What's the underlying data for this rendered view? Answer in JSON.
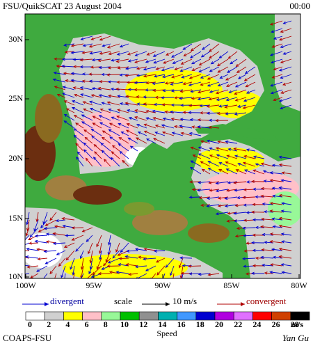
{
  "header": {
    "title": "FSU/QuikSCAT   23 August 2004",
    "time": "00:00"
  },
  "map": {
    "lat_labels": [
      "30N",
      "25N",
      "20N",
      "15N",
      "10N"
    ],
    "lon_labels": [
      "100W",
      "95W",
      "90W",
      "85W",
      "80W"
    ]
  },
  "legend": {
    "divergent": "divergent",
    "scale": "scale",
    "scale_value": "10 m/s",
    "convergent": "convergent"
  },
  "colorbar": {
    "ticks": [
      0,
      2,
      4,
      6,
      8,
      10,
      12,
      14,
      16,
      18,
      20,
      22,
      24,
      26,
      28
    ],
    "unit": "m/s",
    "title": "Speed",
    "colors": [
      "#ffffff",
      "#d0d0d0",
      "#ffff00",
      "#ffc0c8",
      "#98f898",
      "#00c000",
      "#909090",
      "#00b0b0",
      "#4098ff",
      "#0000d0",
      "#b000e0",
      "#e070ff",
      "#ff0000",
      "#d04000",
      "#000000"
    ]
  },
  "footer": {
    "left": "COAPS-FSU",
    "right": "Yan Gu"
  }
}
